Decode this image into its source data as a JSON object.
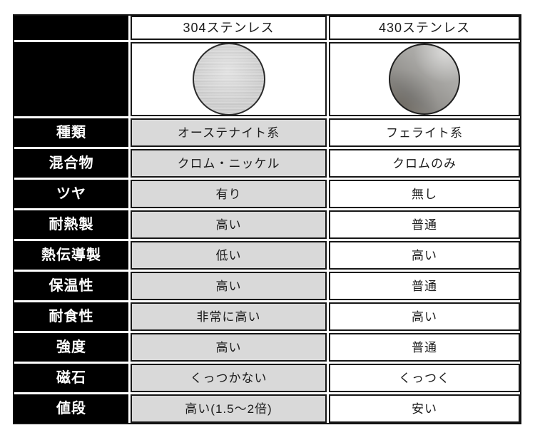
{
  "table": {
    "header": {
      "corner": "",
      "col1": "304ステンレス",
      "col2": "430ステンレス"
    },
    "images": {
      "col1": "stainless-304-sample-disc",
      "col2": "stainless-430-sample-disc"
    },
    "rows": [
      {
        "label": "種類",
        "col1": "オーステナイト系",
        "col2": "フェライト系"
      },
      {
        "label": "混合物",
        "col1": "クロム・ニッケル",
        "col2": "クロムのみ"
      },
      {
        "label": "ツヤ",
        "col1": "有り",
        "col2": "無し"
      },
      {
        "label": "耐熱製",
        "col1": "高い",
        "col2": "普通"
      },
      {
        "label": "熱伝導製",
        "col1": "低い",
        "col2": "高い"
      },
      {
        "label": "保温性",
        "col1": "高い",
        "col2": "普通"
      },
      {
        "label": "耐食性",
        "col1": "非常に高い",
        "col2": "高い"
      },
      {
        "label": "強度",
        "col1": "高い",
        "col2": "普通"
      },
      {
        "label": "磁石",
        "col1": "くっつかない",
        "col2": "くっつく"
      },
      {
        "label": "値段",
        "col1": "高い(1.5〜2倍)",
        "col2": "安い"
      }
    ],
    "colors": {
      "label_bg": "#000000",
      "label_text": "#ffffff",
      "col1_bg": "#d9d9d9",
      "col2_bg": "#ffffff",
      "border": "#161616",
      "disc_304_base": "#cccccc",
      "disc_430_base": "#9a9895"
    }
  },
  "chart_data": {
    "type": "table",
    "title": "",
    "columns": [
      "",
      "304ステンレス",
      "430ステンレス"
    ],
    "rows": [
      [
        "種類",
        "オーステナイト系",
        "フェライト系"
      ],
      [
        "混合物",
        "クロム・ニッケル",
        "クロムのみ"
      ],
      [
        "ツヤ",
        "有り",
        "無し"
      ],
      [
        "耐熱製",
        "高い",
        "普通"
      ],
      [
        "熱伝導製",
        "低い",
        "高い"
      ],
      [
        "保温性",
        "高い",
        "普通"
      ],
      [
        "耐食性",
        "非常に高い",
        "高い"
      ],
      [
        "強度",
        "高い",
        "普通"
      ],
      [
        "磁石",
        "くっつかない",
        "くっつく"
      ],
      [
        "値段",
        "高い(1.5〜2倍)",
        "安い"
      ]
    ],
    "notes": "Row below header shows circular metal sample images: 304 = bright brushed silver disc, 430 = darker matte gray disc with diagonal highlight",
    "layout": {
      "label_column": "black with white bold text",
      "col_304": "light gray cells",
      "col_430": "white cells",
      "grid": "black 2px cell borders with 3px white spacing"
    }
  }
}
